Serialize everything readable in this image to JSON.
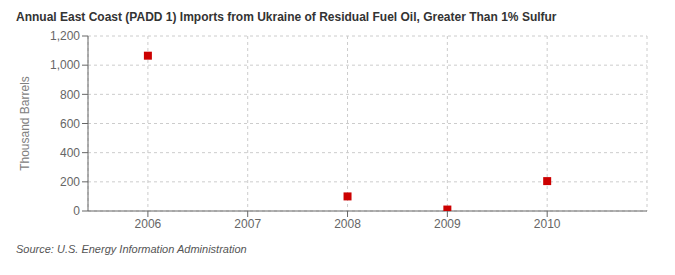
{
  "chart_data": {
    "type": "scatter",
    "title": "Annual East Coast (PADD 1) Imports from Ukraine of Residual Fuel Oil, Greater Than 1% Sulfur",
    "ylabel": "Thousand Barrels",
    "annotations": [
      "Source: U.S. Energy Information Administration"
    ],
    "x": [
      2006,
      2008,
      2009,
      2010
    ],
    "values": [
      1065,
      100,
      10,
      205
    ],
    "xlim": [
      2005.4,
      2011.0
    ],
    "xticks": [
      2006,
      2007,
      2008,
      2009,
      2010
    ],
    "ylim": [
      0,
      1200
    ],
    "yticks": [
      0,
      200,
      400,
      600,
      800,
      {
        "value": 1000,
        "label": "1,000"
      },
      {
        "value": 1200,
        "label": "1,200"
      }
    ],
    "color": "#cc0000",
    "marker": "square",
    "grid": true
  }
}
